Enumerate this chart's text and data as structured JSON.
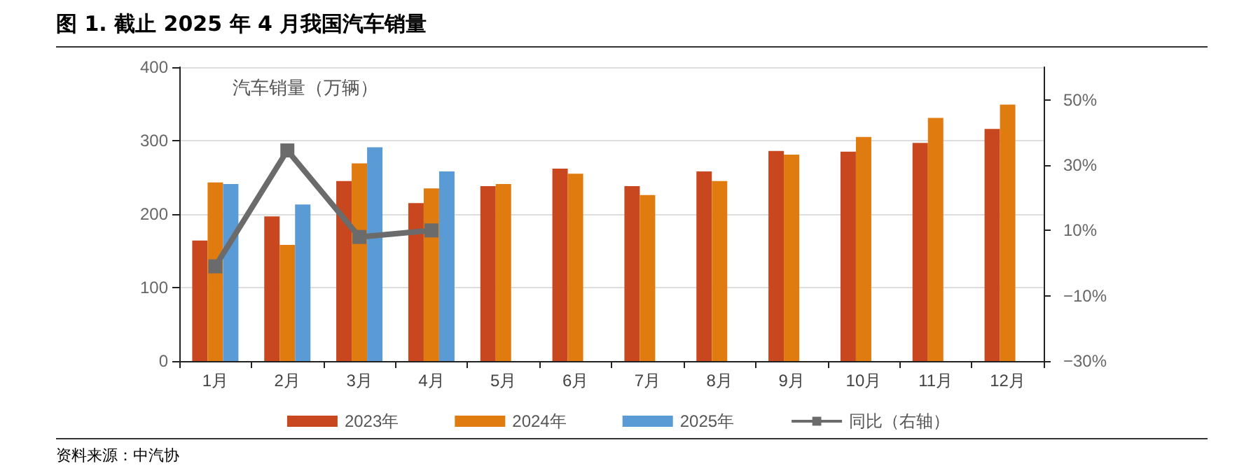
{
  "chart_data": {
    "type": "bar",
    "title": "图 1. 截止 2025 年 4 月我国汽车销量",
    "ylabel": "汽车销量（万辆）",
    "annotations": [
      "资料来源：中汽协"
    ],
    "categories": [
      "1月",
      "2月",
      "3月",
      "4月",
      "5月",
      "6月",
      "7月",
      "8月",
      "9月",
      "10月",
      "11月",
      "12月"
    ],
    "series": [
      {
        "name": "2023年",
        "color": "#c9471f",
        "values": [
          164,
          197,
          245,
          215,
          238,
          262,
          238,
          258,
          286,
          285,
          297,
          316
        ]
      },
      {
        "name": "2024年",
        "color": "#e07b10",
        "values": [
          243,
          158,
          269,
          235,
          241,
          255,
          226,
          245,
          281,
          305,
          331,
          349
        ]
      },
      {
        "name": "2025年",
        "color": "#5b9bd5",
        "values": [
          241,
          213,
          291,
          258,
          null,
          null,
          null,
          null,
          null,
          null,
          null,
          null
        ]
      },
      {
        "name": "同比（右轴）",
        "type": "line",
        "axis": "y2",
        "color": "#6b6b6b",
        "marker": "square",
        "values": [
          -1,
          34.5,
          8,
          10,
          null,
          null,
          null,
          null,
          null,
          null,
          null,
          null
        ]
      }
    ],
    "ylim": [
      0,
      400
    ],
    "yticks": [
      0,
      100,
      200,
      300,
      400
    ],
    "y2lim": [
      -30,
      60
    ],
    "y2ticks": [
      {
        "value": -30,
        "label": "−30%"
      },
      {
        "value": -10,
        "label": "−10%"
      },
      {
        "value": 10,
        "label": "10%"
      },
      {
        "value": 30,
        "label": "30%"
      },
      {
        "value": 50,
        "label": "50%"
      }
    ],
    "grid": "y",
    "legend": "bottom"
  }
}
